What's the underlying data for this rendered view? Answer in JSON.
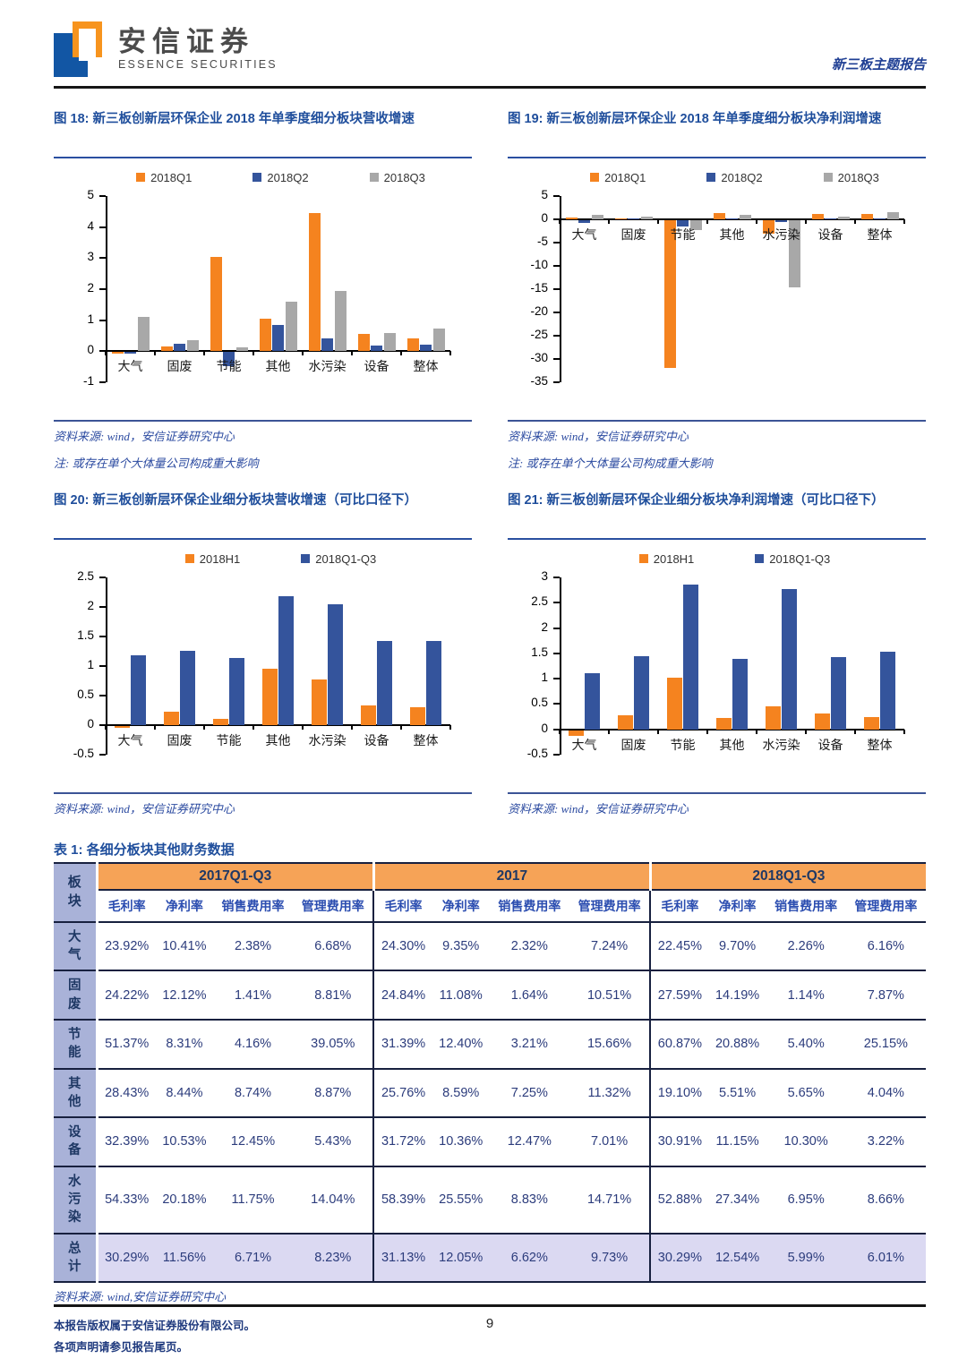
{
  "header": {
    "brand_cn": "安信证券",
    "brand_en": "ESSENCE SECURITIES",
    "report_type": "新三板主题报告"
  },
  "colors": {
    "series_orange": "#F5831F",
    "series_blue": "#34549C",
    "series_gray": "#A8A8A8",
    "title_blue": "#1F4E9C",
    "table_band_orange": "#F6A357",
    "table_label_periwinkle": "#A9B2D8",
    "table_total_lavender": "#DBD9F2"
  },
  "figures": [
    {
      "title": "图 18: 新三板创新层环保企业 2018 年单季度细分板块营收增速",
      "source": "资料来源: wind，安信证券研究中心",
      "note": "注: 或存在单个大体量公司构成重大影响"
    },
    {
      "title": "图 19: 新三板创新层环保企业 2018 年单季度细分板块净利润增速",
      "source": "资料来源: wind，安信证券研究中心",
      "note": "注: 或存在单个大体量公司构成重大影响"
    },
    {
      "title": "图 20: 新三板创新层环保企业细分板块营收增速（可比口径下）",
      "source": "资料来源: wind，安信证券研究中心",
      "note": ""
    },
    {
      "title": "图 21: 新三板创新层环保企业细分板块净利润增速（可比口径下）",
      "source": "资料来源: wind，安信证券研究中心",
      "note": ""
    }
  ],
  "chart_data": [
    {
      "type": "bar",
      "title": "新三板创新层环保企业2018年单季度细分板块营收增速",
      "categories": [
        "大气",
        "固废",
        "节能",
        "其他",
        "水污染",
        "设备",
        "整体"
      ],
      "series": [
        {
          "name": "2018Q1",
          "color": "#F5831F",
          "values": [
            -0.05,
            0.15,
            3.05,
            1.05,
            4.45,
            0.55,
            0.4
          ]
        },
        {
          "name": "2018Q2",
          "color": "#34549C",
          "values": [
            -0.06,
            0.25,
            -0.45,
            0.85,
            0.42,
            0.18,
            0.22
          ]
        },
        {
          "name": "2018Q3",
          "color": "#A8A8A8",
          "values": [
            1.12,
            0.35,
            0.13,
            1.6,
            1.95,
            0.6,
            0.72
          ]
        }
      ],
      "ylim": [
        -1,
        5
      ],
      "ytick_step": 1,
      "grid": false,
      "legend_position": "top"
    },
    {
      "type": "bar",
      "title": "新三板创新层环保企业2018年单季度细分板块净利润增速",
      "categories": [
        "大气",
        "固废",
        "节能",
        "其他",
        "水污染",
        "设备",
        "整体"
      ],
      "series": [
        {
          "name": "2018Q1",
          "color": "#F5831F",
          "values": [
            0.4,
            0.05,
            -31.8,
            1.4,
            -2.8,
            1.1,
            1.1
          ]
        },
        {
          "name": "2018Q2",
          "color": "#34549C",
          "values": [
            -0.5,
            0.05,
            -1.3,
            0.1,
            -0.3,
            0.15,
            0.15
          ]
        },
        {
          "name": "2018Q3",
          "color": "#A8A8A8",
          "values": [
            0.9,
            0.6,
            -2.1,
            0.9,
            -14.5,
            0.55,
            1.6
          ]
        }
      ],
      "ylim": [
        -35,
        5
      ],
      "ytick_step": 5,
      "grid": false,
      "legend_position": "top"
    },
    {
      "type": "bar",
      "title": "新三板创新层环保企业细分板块营收增速（可比口径下）",
      "categories": [
        "大气",
        "固废",
        "节能",
        "其他",
        "水污染",
        "设备",
        "整体"
      ],
      "series": [
        {
          "name": "2018H1",
          "color": "#F5831F",
          "values": [
            -0.03,
            0.22,
            0.11,
            0.95,
            0.78,
            0.34,
            0.31
          ]
        },
        {
          "name": "2018Q1-Q3",
          "color": "#34549C",
          "values": [
            1.18,
            1.26,
            1.13,
            2.18,
            2.05,
            1.43,
            1.43
          ]
        }
      ],
      "ylim": [
        -0.5,
        2.5
      ],
      "ytick_step": 0.5,
      "grid": false,
      "legend_position": "top"
    },
    {
      "type": "bar",
      "title": "新三板创新层环保企业细分板块净利润增速（可比口径下）",
      "categories": [
        "大气",
        "固废",
        "节能",
        "其他",
        "水污染",
        "设备",
        "整体"
      ],
      "series": [
        {
          "name": "2018H1",
          "color": "#F5831F",
          "values": [
            -0.12,
            0.28,
            1.02,
            0.22,
            0.46,
            0.31,
            0.25
          ]
        },
        {
          "name": "2018Q1-Q3",
          "color": "#34549C",
          "values": [
            1.1,
            1.45,
            2.85,
            1.4,
            2.77,
            1.43,
            1.53
          ]
        }
      ],
      "ylim": [
        -0.5,
        3
      ],
      "ytick_step": 0.5,
      "grid": false,
      "legend_position": "top"
    }
  ],
  "table": {
    "title": "表 1: 各细分板块其他财务数据",
    "corner": "板块",
    "groups": [
      "2017Q1-Q3",
      "2017",
      "2018Q1-Q3"
    ],
    "subheaders": [
      "毛利率",
      "净利率",
      "销售费用率",
      "管理费用率",
      "毛利率",
      "净利率",
      "销售费用率",
      "管理费用率",
      "毛利率",
      "净利率",
      "销售费用率",
      "管理费用率"
    ],
    "rows": [
      {
        "label": "大气",
        "values": [
          "23.92%",
          "10.41%",
          "2.38%",
          "6.68%",
          "24.30%",
          "9.35%",
          "2.32%",
          "7.24%",
          "22.45%",
          "9.70%",
          "2.26%",
          "6.16%"
        ]
      },
      {
        "label": "固废",
        "values": [
          "24.22%",
          "12.12%",
          "1.41%",
          "8.81%",
          "24.84%",
          "11.08%",
          "1.64%",
          "10.51%",
          "27.59%",
          "14.19%",
          "1.14%",
          "7.87%"
        ]
      },
      {
        "label": "节能",
        "values": [
          "51.37%",
          "8.31%",
          "4.16%",
          "39.05%",
          "31.39%",
          "12.40%",
          "3.21%",
          "15.66%",
          "60.87%",
          "20.88%",
          "5.40%",
          "25.15%"
        ]
      },
      {
        "label": "其他",
        "values": [
          "28.43%",
          "8.44%",
          "8.74%",
          "8.87%",
          "25.76%",
          "8.59%",
          "7.25%",
          "11.32%",
          "19.10%",
          "5.51%",
          "5.65%",
          "4.04%"
        ]
      },
      {
        "label": "设备",
        "values": [
          "32.39%",
          "10.53%",
          "12.45%",
          "5.43%",
          "31.72%",
          "10.36%",
          "12.47%",
          "7.01%",
          "30.91%",
          "11.15%",
          "10.30%",
          "3.22%"
        ]
      },
      {
        "label": "水污染",
        "values": [
          "54.33%",
          "20.18%",
          "11.75%",
          "14.04%",
          "58.39%",
          "25.55%",
          "8.83%",
          "14.71%",
          "52.88%",
          "27.34%",
          "6.95%",
          "8.66%"
        ]
      },
      {
        "label": "总计",
        "values": [
          "30.29%",
          "11.56%",
          "6.71%",
          "8.23%",
          "31.13%",
          "12.05%",
          "6.62%",
          "9.73%",
          "30.29%",
          "12.54%",
          "5.99%",
          "6.01%"
        ]
      }
    ],
    "total_row_label": "总计",
    "source": "资料来源: wind,安信证券研究中心"
  },
  "footer": {
    "line1": "本报告版权属于安信证券股份有限公司。",
    "line2": "各项声明请参见报告尾页。",
    "page": "9"
  }
}
